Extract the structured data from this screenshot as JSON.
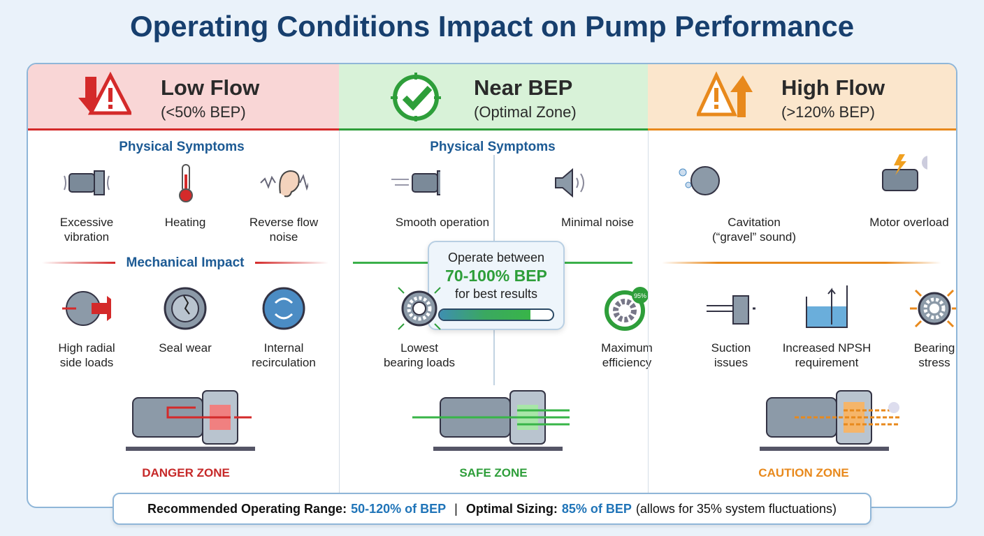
{
  "title": "Operating Conditions Impact on Pump Performance",
  "columns": [
    {
      "title": "Low Flow",
      "subtitle": "(<50% BEP)",
      "color": "#d42a2a",
      "header_bg": "#f9d6d6",
      "symptoms_heading": "Physical Symptoms",
      "symptoms": [
        {
          "l1": "Excessive",
          "l2": "vibration",
          "icon": "vibrating-motor-icon"
        },
        {
          "l1": "Heating",
          "l2": "",
          "icon": "thermometer-icon"
        },
        {
          "l1": "Reverse flow",
          "l2": "noise",
          "icon": "ear-icon"
        }
      ],
      "impact_heading": "Mechanical Impact",
      "impacts": [
        {
          "l1": "High radial",
          "l2": "side loads",
          "icon": "radial-load-icon"
        },
        {
          "l1": "Seal wear",
          "l2": "",
          "icon": "cracked-seal-icon"
        },
        {
          "l1": "Internal",
          "l2": "recirculation",
          "icon": "recirculation-icon"
        }
      ],
      "zone": "DANGER ZONE"
    },
    {
      "title": "Near BEP",
      "subtitle": "(Optimal Zone)",
      "color": "#2e9e3a",
      "header_bg": "#d8f2d8",
      "symptoms_heading": "Physical Symptoms",
      "symptoms": [
        {
          "l1": "Smooth operation",
          "l2": "",
          "icon": "smooth-motor-icon"
        },
        {
          "l1": "Minimal noise",
          "l2": "",
          "icon": "speaker-icon"
        }
      ],
      "callout": {
        "line1": "Operate between",
        "highlight": "70-100% BEP",
        "line3": "for best results",
        "bar_fill_percent": 80
      },
      "impacts": [
        {
          "l1": "Lowest",
          "l2": "bearing loads",
          "icon": "bearing-icon"
        },
        {
          "l1": "Maximum",
          "l2": "efficiency",
          "icon": "gear-efficiency-icon",
          "badge": "95%"
        }
      ],
      "zone": "SAFE ZONE"
    },
    {
      "title": "High Flow",
      "subtitle": "(>120% BEP)",
      "color": "#e8891c",
      "header_bg": "#fbe6cc",
      "symptoms": [
        {
          "l1": "Cavitation",
          "l2": "(“gravel” sound)",
          "icon": "cavitation-icon"
        },
        {
          "l1": "Motor overload",
          "l2": "",
          "icon": "motor-overload-icon"
        }
      ],
      "impacts": [
        {
          "l1": "Suction",
          "l2": "issues",
          "icon": "suction-icon"
        },
        {
          "l1": "Increased NPSH",
          "l2": "requirement",
          "icon": "npsh-tank-icon"
        },
        {
          "l1": "Bearing",
          "l2": "stress",
          "icon": "bearing-stress-icon"
        }
      ],
      "zone": "CAUTION ZONE"
    }
  ],
  "footer": {
    "label1": "Recommended Operating Range:",
    "value1": "50-120% of BEP",
    "sep": "|",
    "label2": "Optimal Sizing:",
    "value2": "85% of BEP",
    "note": "(allows for 35% system fluctuations)"
  }
}
